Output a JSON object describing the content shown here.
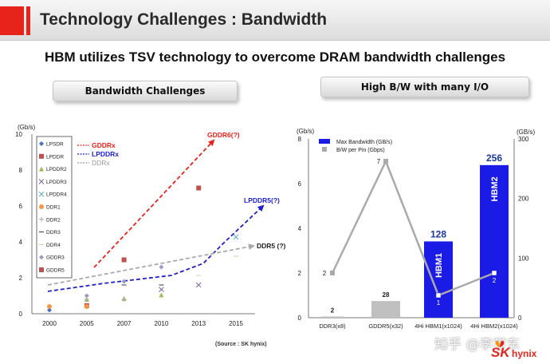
{
  "slide": {
    "title": "Technology Challenges : Bandwidth",
    "subtitle": "HBM utilizes TSV technology to overcome DRAM bandwidth challenges",
    "source": "(Source : SK hynix)",
    "watermark": "知乎 @李学东",
    "logo_sk": "SK",
    "logo_hynix": "hynix"
  },
  "panels": {
    "left_label": "Bandwidth Challenges",
    "right_label": "High B/W with many I/O"
  },
  "colors": {
    "accent": "#e8231b",
    "bar_blue": "#1b1be6",
    "bar_gray": "#c0c0c0"
  },
  "chart_data": [
    {
      "type": "scatter",
      "ylabel": "(Gb/s)",
      "ylim": [
        0,
        10
      ],
      "yticks": [
        "0",
        "2",
        "4",
        "6",
        "8",
        "10"
      ],
      "categories": [
        "2000",
        "2005",
        "2007",
        "2010",
        "2013",
        "2015"
      ],
      "legend_placement": "top-left",
      "series": [
        {
          "name": "LPSDR",
          "color": "#4472c4",
          "marker": "diamond",
          "points": [
            [
              2000,
              0.2
            ],
            [
              2005,
              0.4
            ]
          ]
        },
        {
          "name": "LPDDR",
          "color": "#c0504d",
          "marker": "square",
          "points": [
            [
              2005,
              0.45
            ]
          ]
        },
        {
          "name": "LPDDR2",
          "color": "#9bbb59",
          "marker": "triangle",
          "points": [
            [
              2005,
              0.8
            ],
            [
              2007,
              0.85
            ],
            [
              2010,
              1.05
            ]
          ]
        },
        {
          "name": "LPDDR3",
          "color": "#8064a2",
          "marker": "x",
          "points": [
            [
              2010,
              1.35
            ],
            [
              2013,
              1.6
            ]
          ]
        },
        {
          "name": "LPDDR4",
          "color": "#4bacc6",
          "marker": "x",
          "points": [
            [
              2015,
              4.27
            ]
          ]
        },
        {
          "name": "DDR1",
          "color": "#f79646",
          "marker": "circle",
          "points": [
            [
              2000,
              0.4
            ],
            [
              2005,
              0.4
            ]
          ]
        },
        {
          "name": "DDR2",
          "color": "#aaaaaa",
          "marker": "plus",
          "points": [
            [
              2005,
              0.8
            ],
            [
              2007,
              0.8
            ]
          ]
        },
        {
          "name": "DDR3",
          "color": "#333333",
          "marker": "dash",
          "points": [
            [
              2007,
              1.6
            ],
            [
              2010,
              1.6
            ]
          ]
        },
        {
          "name": "DDR4",
          "color": "#c3d69b",
          "marker": "dash",
          "points": [
            [
              2013,
              2.13
            ],
            [
              2015,
              3.2
            ]
          ]
        },
        {
          "name": "GDDR3",
          "color": "#9999cc",
          "marker": "diamond",
          "points": [
            [
              2005,
              1.0
            ],
            [
              2007,
              1.8
            ],
            [
              2010,
              2.6
            ]
          ]
        },
        {
          "name": "GDDR5",
          "color": "#c0504d",
          "marker": "square",
          "points": [
            [
              2007,
              3.0
            ],
            [
              2013,
              7.0
            ]
          ]
        }
      ],
      "trend_legend": [
        {
          "name": "GDDRx",
          "color": "#e8231b"
        },
        {
          "name": "LPDDRx",
          "color": "#1f1fcc"
        },
        {
          "name": "DDRx",
          "color": "#999999"
        }
      ],
      "annotations": {
        "gddr": "GDDR6(?)",
        "lpddr": "LPDDR5(?)",
        "ddr": "DDR5 (?)"
      }
    },
    {
      "type": "bar",
      "ylabel_left": "(Gb/s)",
      "ylabel_right": "(GB/s)",
      "ylim_left": [
        0,
        8
      ],
      "ylim_right": [
        0,
        300
      ],
      "yticks_left": [
        "0",
        "2",
        "4",
        "6",
        "8"
      ],
      "yticks_right": [
        "0",
        "100",
        "200",
        "300"
      ],
      "categories": [
        "DDR3(x8)",
        "GDDR5(x32)",
        "4Hi HBM1(x1024)",
        "4Hi HBM2(x1024)"
      ],
      "series": [
        {
          "name": "Max Bandwidth (GB/s)",
          "axis": "right",
          "values": [
            2,
            28,
            128,
            256
          ],
          "labels": [
            "2",
            "28",
            "128",
            "256"
          ]
        },
        {
          "name": "B/W per Pin (Gbps)",
          "axis": "left",
          "values": [
            2,
            7,
            1,
            2
          ],
          "labels": [
            "2",
            "7",
            "1",
            "2"
          ]
        }
      ],
      "bar_labels": [
        "",
        "",
        "HBM1",
        "HBM2"
      ]
    }
  ]
}
